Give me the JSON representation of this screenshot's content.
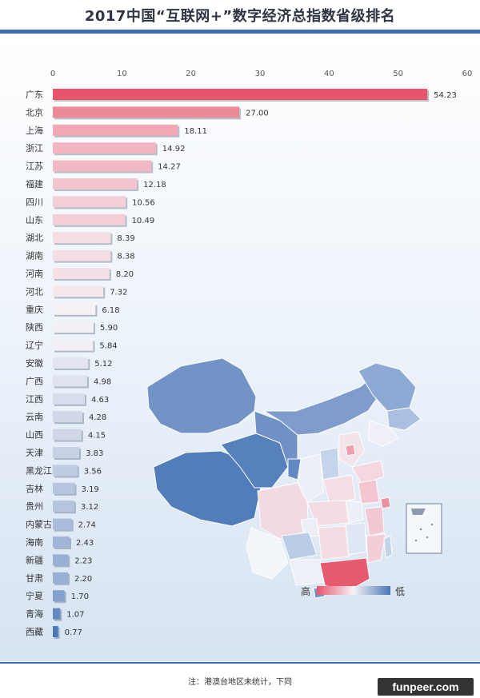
{
  "title": "2017中国“互联网+”数字经济总指数省级排名",
  "footer_note": "注：港澳台地区未统计，下同",
  "watermark": "funpeer.com",
  "legend": {
    "high": "高",
    "low": "低"
  },
  "colors": {
    "title_rule": "#3d6fb2",
    "high": "#e8546a",
    "mid": "#f6f2f6",
    "low": "#4a78b8"
  },
  "chart_data": {
    "type": "bar",
    "orientation": "horizontal",
    "xlim": [
      0,
      60
    ],
    "x_ticks": [
      "0",
      "10",
      "20",
      "30",
      "40",
      "50",
      "60"
    ],
    "categories": [
      "广东",
      "北京",
      "上海",
      "浙江",
      "江苏",
      "福建",
      "四川",
      "山东",
      "湖北",
      "湖南",
      "河南",
      "河北",
      "重庆",
      "陕西",
      "辽宁",
      "安徽",
      "广西",
      "江西",
      "云南",
      "山西",
      "天津",
      "黑龙江",
      "吉林",
      "贵州",
      "内蒙古",
      "海南",
      "新疆",
      "甘肃",
      "宁夏",
      "青海",
      "西藏"
    ],
    "values": [
      54.23,
      27.0,
      18.11,
      14.92,
      14.27,
      12.18,
      10.56,
      10.49,
      8.39,
      8.38,
      8.2,
      7.32,
      6.18,
      5.9,
      5.84,
      5.12,
      4.98,
      4.63,
      4.28,
      4.15,
      3.83,
      3.56,
      3.19,
      3.12,
      2.74,
      2.43,
      2.23,
      2.2,
      1.7,
      1.07,
      0.77
    ],
    "value_labels": [
      "54.23",
      "27.00",
      "18.11",
      "14.92",
      "14.27",
      "12.18",
      "10.56",
      "10.49",
      "8.39",
      "8.38",
      "8.20",
      "7.32",
      "6.18",
      "5.90",
      "5.84",
      "5.12",
      "4.98",
      "4.63",
      "4.28",
      "4.15",
      "3.83",
      "3.56",
      "3.19",
      "3.12",
      "2.74",
      "2.43",
      "2.23",
      "2.20",
      "1.70",
      "1.07",
      "0.77"
    ],
    "grid": false,
    "legend_position": "bottom-right"
  }
}
